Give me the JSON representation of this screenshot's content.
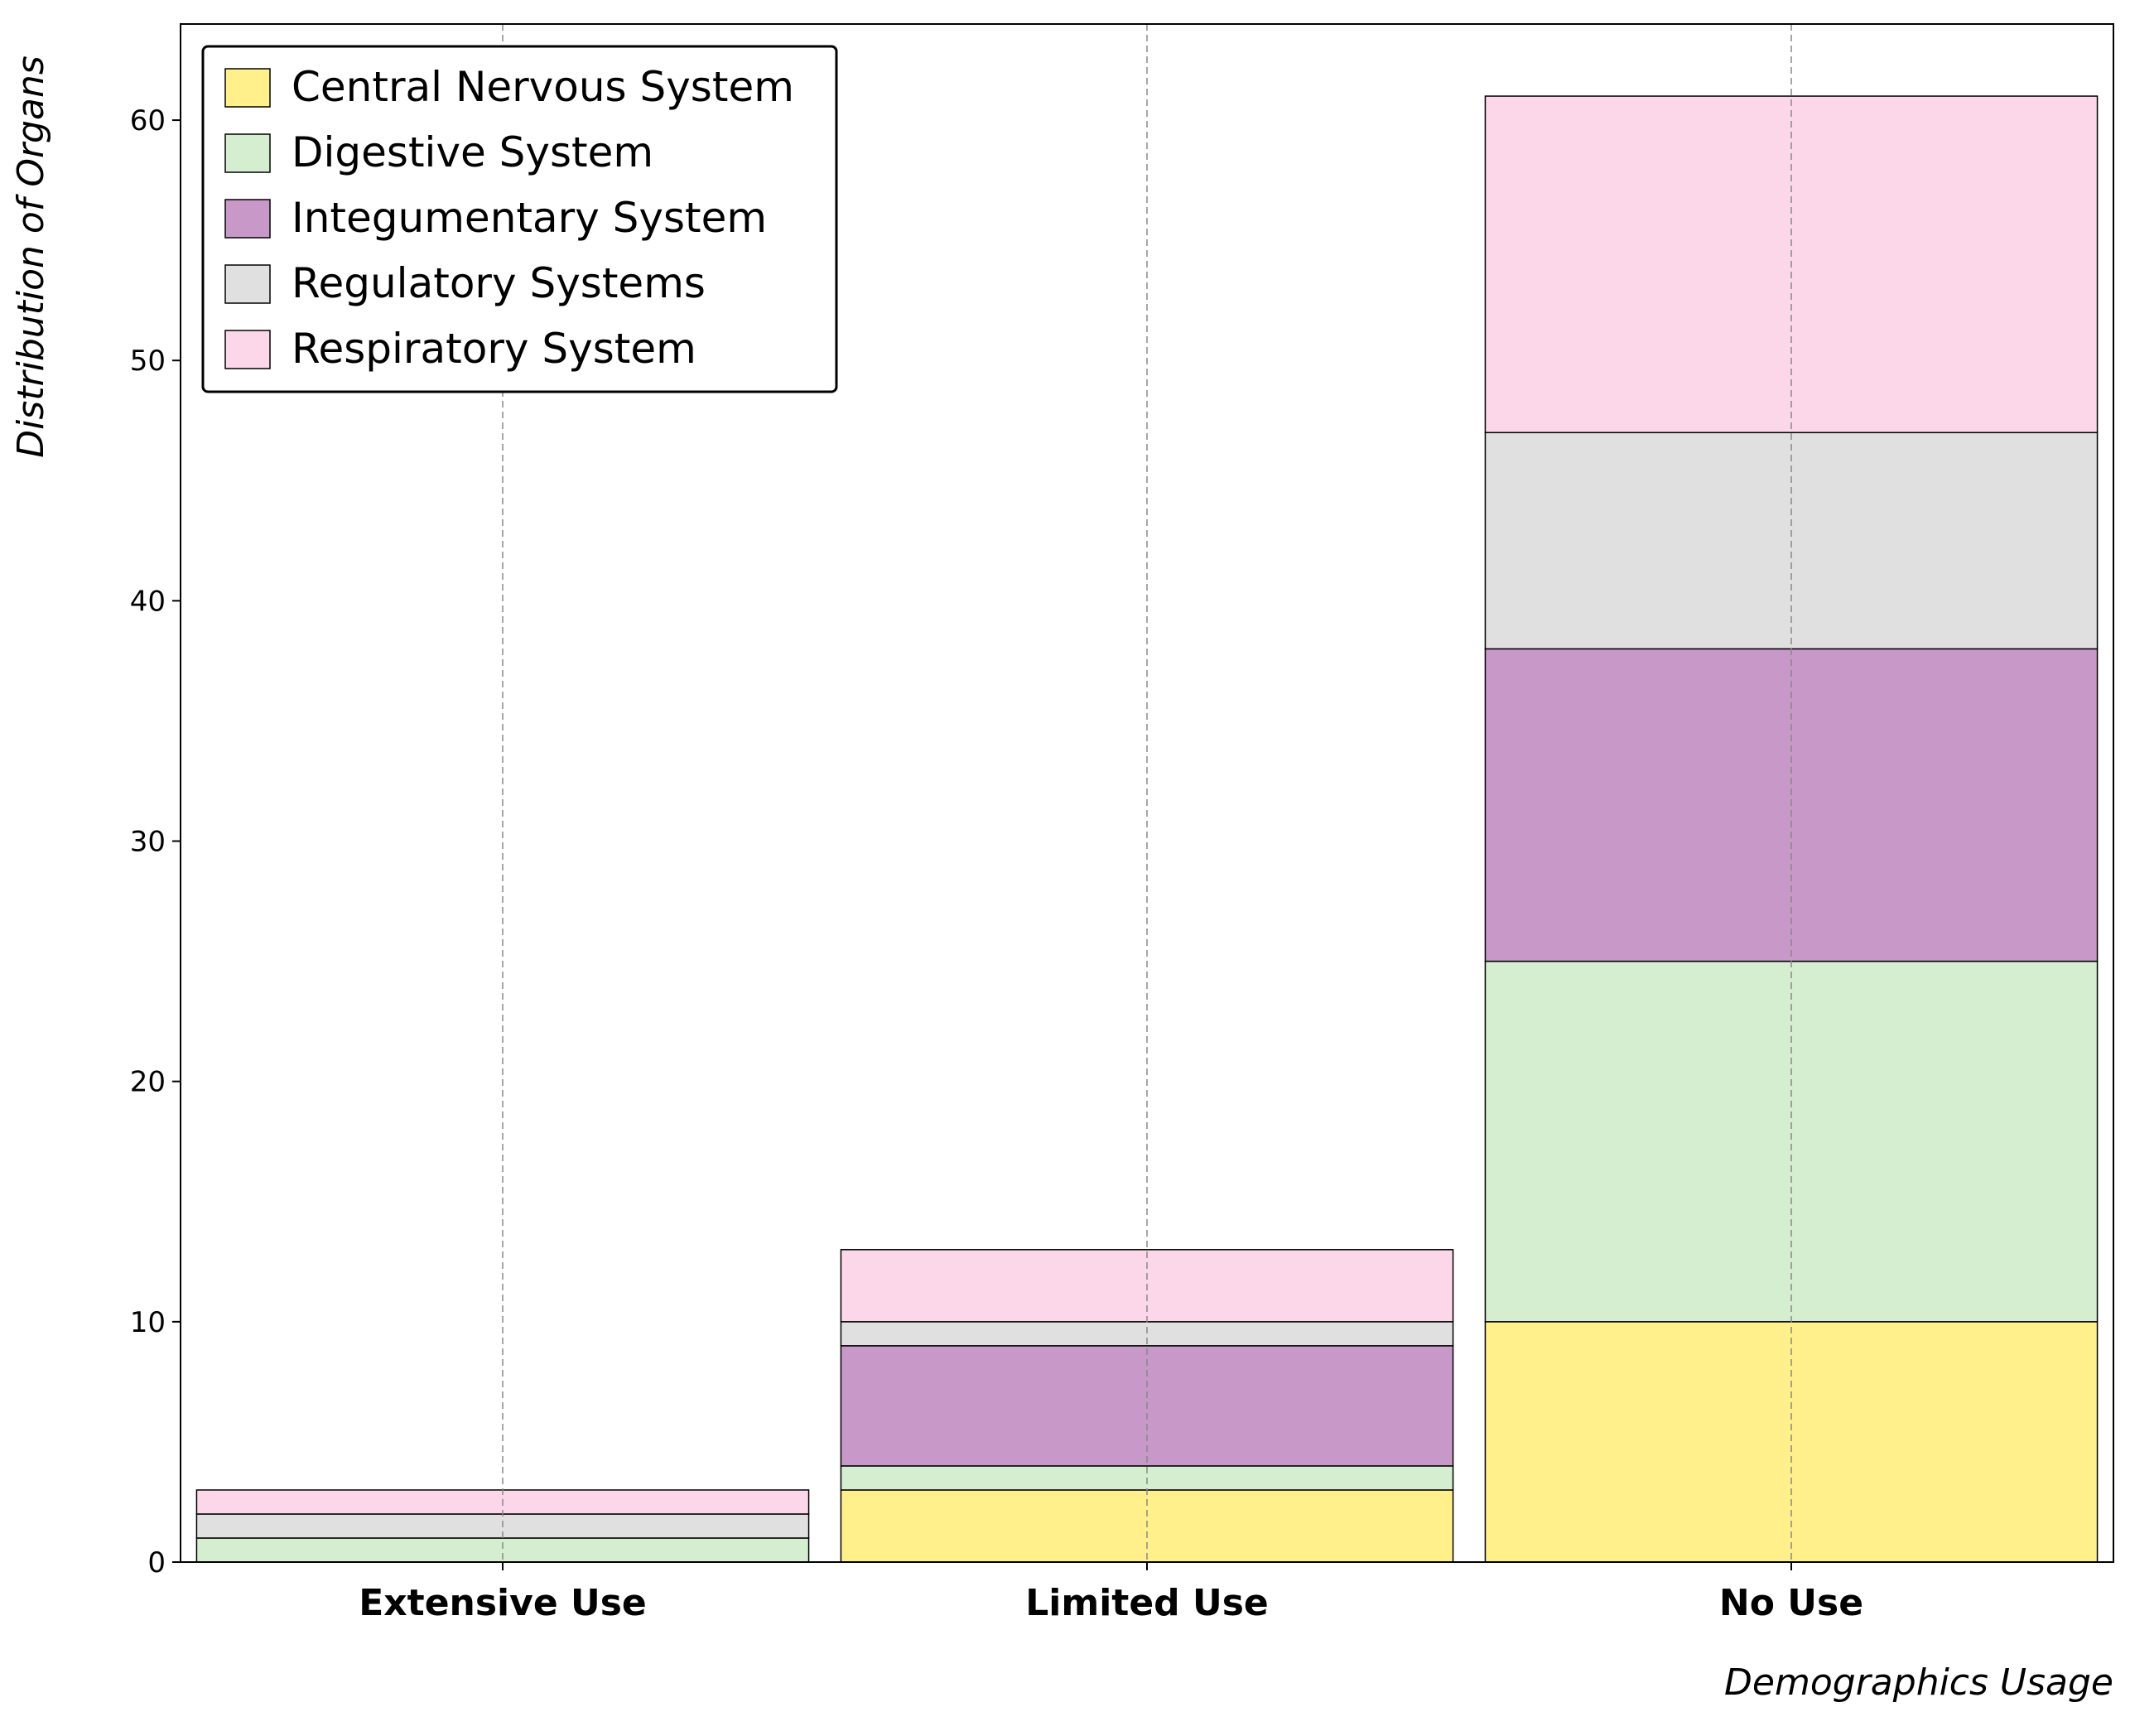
{
  "chart_data": {
    "type": "bar",
    "stacked": true,
    "categories": [
      "Extensive Use",
      "Limited Use",
      "No Use"
    ],
    "series": [
      {
        "name": "Central Nervous System",
        "color": "#fff08c",
        "values": [
          0,
          3,
          10
        ]
      },
      {
        "name": "Digestive System",
        "color": "#d4eecf",
        "values": [
          1,
          1,
          15
        ]
      },
      {
        "name": "Integumentary System",
        "color": "#c898c8",
        "values": [
          0,
          5,
          13
        ]
      },
      {
        "name": "Regulatory Systems",
        "color": "#e0e0e0",
        "values": [
          1,
          1,
          9
        ]
      },
      {
        "name": "Respiratory System",
        "color": "#fcd7ea",
        "values": [
          1,
          3,
          14
        ]
      }
    ],
    "xlabel": "Demographics Usage",
    "ylabel": "Distribution of Organs",
    "ylim": [
      0,
      64
    ],
    "yticks": [
      0,
      10,
      20,
      30,
      40,
      50,
      60
    ],
    "grid": "x-dashed",
    "legend_position": "top-left"
  }
}
